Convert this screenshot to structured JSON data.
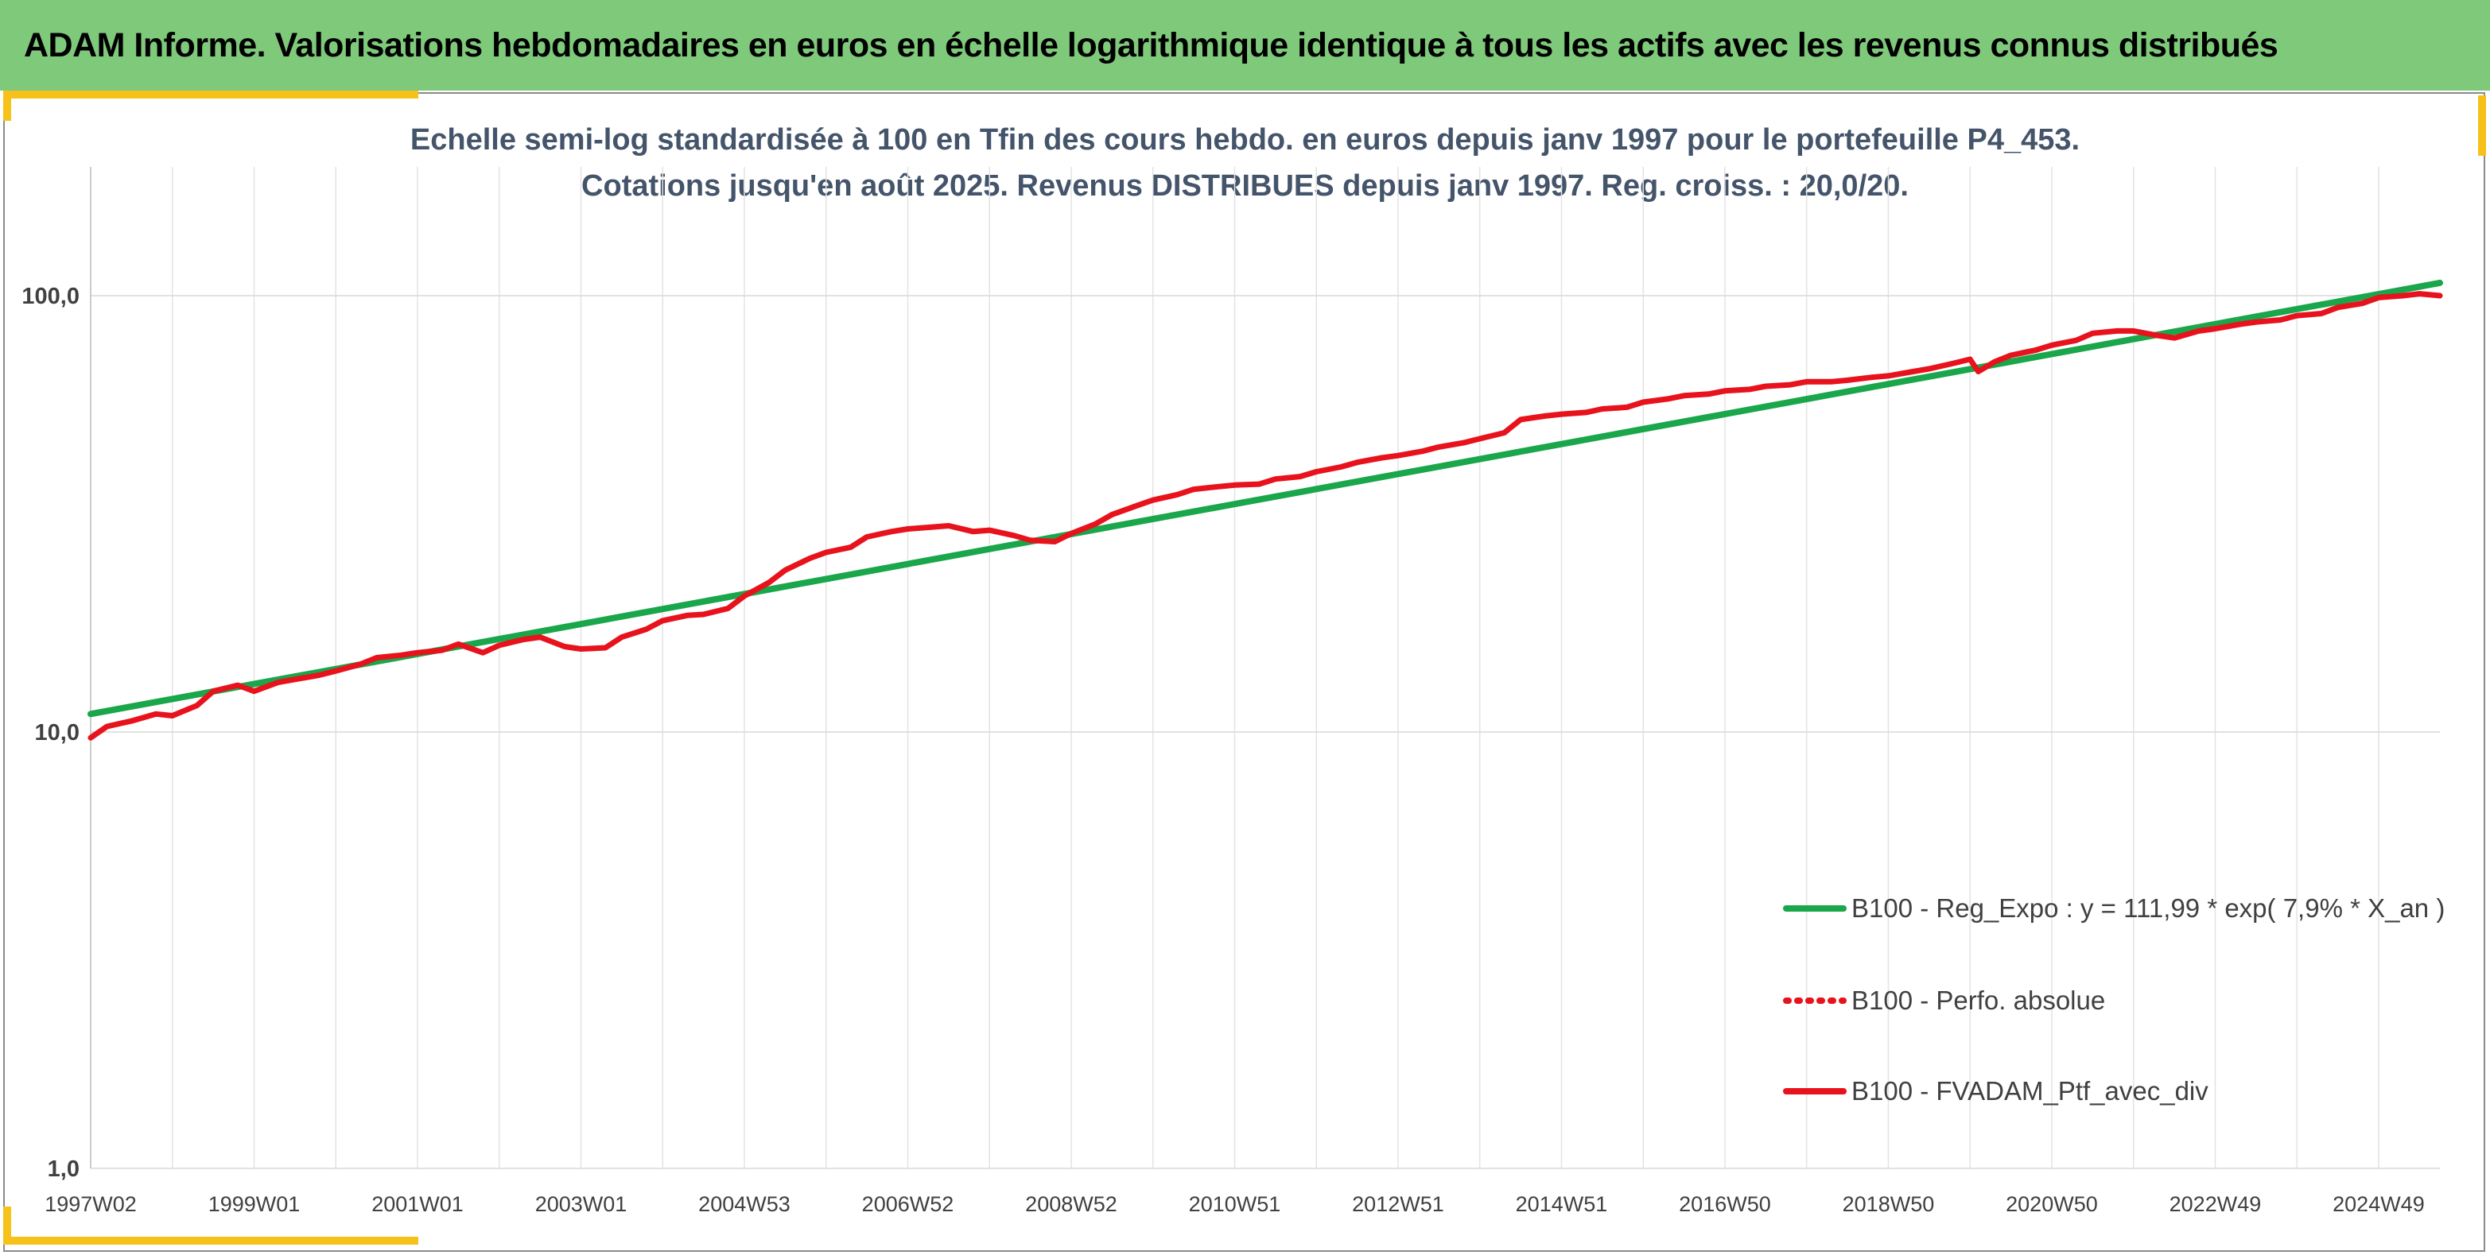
{
  "header": {
    "title": "ADAM Informe. Valorisations hebdomadaires en euros en échelle logarithmique identique à tous les actifs avec les revenus connus distribués"
  },
  "colors": {
    "header_bg": "#7fc97b",
    "accent": "#f6c21a",
    "regression": "#1aa64a",
    "portfolio": "#e8121c"
  },
  "chart_data": {
    "type": "line",
    "title": "Echelle semi-log standardisée à 100 en Tfin des cours hebdo. en euros depuis janv 1997 pour le portefeuille P4_453.",
    "subtitle": "Cotations jusqu'en août 2025. Revenus DISTRIBUES depuis janv 1997. Reg. croiss. : 20,0/20.",
    "y_scale": "log",
    "ylim": [
      1,
      200
    ],
    "y_ticks": [
      {
        "value": 1,
        "label": "1,0"
      },
      {
        "value": 10,
        "label": "10,0"
      },
      {
        "value": 100,
        "label": "100,0"
      }
    ],
    "x_ticks": [
      "1997W02",
      "1999W01",
      "2001W01",
      "2003W01",
      "2004W53",
      "2006W52",
      "2008W52",
      "2010W51",
      "2012W51",
      "2014W51",
      "2016W50",
      "2018W50",
      "2020W50",
      "2022W49",
      "2024W49"
    ],
    "x_tick_years": [
      1997.0,
      1999.0,
      2001.0,
      2003.0,
      2005.0,
      2007.0,
      2009.0,
      2011.0,
      2013.0,
      2015.0,
      2017.0,
      2019.0,
      2021.0,
      2023.0,
      2025.0
    ],
    "xlim": [
      1997.0,
      2025.75
    ],
    "grid": true,
    "legend_position": "bottom-right",
    "series": [
      {
        "name": "B100 - Reg_Expo : y = 111,99 * exp( 7,9% *  X_an )",
        "style": "solid",
        "color": "#1aa64a",
        "x": [
          1997.0,
          2025.75
        ],
        "y": [
          11.0,
          107.0
        ]
      },
      {
        "name": "B100 - Perfo. absolue",
        "style": "dotted",
        "color": "#e8121c",
        "x": [],
        "y": []
      },
      {
        "name": "B100 - FVADAM_Ptf_avec_div",
        "style": "solid",
        "color": "#e8121c",
        "x": [
          1997.0,
          1997.2,
          1997.5,
          1997.8,
          1998.0,
          1998.3,
          1998.5,
          1998.8,
          1999.0,
          1999.3,
          1999.5,
          1999.8,
          2000.0,
          2000.3,
          2000.5,
          2000.8,
          2001.0,
          2001.3,
          2001.5,
          2001.8,
          2002.0,
          2002.3,
          2002.5,
          2002.8,
          2003.0,
          2003.3,
          2003.5,
          2003.8,
          2004.0,
          2004.3,
          2004.5,
          2004.8,
          2005.0,
          2005.3,
          2005.5,
          2005.8,
          2006.0,
          2006.3,
          2006.5,
          2006.8,
          2007.0,
          2007.3,
          2007.5,
          2007.8,
          2008.0,
          2008.3,
          2008.5,
          2008.8,
          2009.0,
          2009.3,
          2009.5,
          2009.8,
          2010.0,
          2010.3,
          2010.5,
          2010.8,
          2011.0,
          2011.3,
          2011.5,
          2011.8,
          2012.0,
          2012.3,
          2012.5,
          2012.8,
          2013.0,
          2013.3,
          2013.5,
          2013.8,
          2014.0,
          2014.3,
          2014.5,
          2014.8,
          2015.0,
          2015.3,
          2015.5,
          2015.8,
          2016.0,
          2016.3,
          2016.5,
          2016.8,
          2017.0,
          2017.3,
          2017.5,
          2017.8,
          2018.0,
          2018.3,
          2018.5,
          2018.8,
          2019.0,
          2019.3,
          2019.5,
          2019.8,
          2020.0,
          2020.1,
          2020.3,
          2020.5,
          2020.8,
          2021.0,
          2021.3,
          2021.5,
          2021.8,
          2022.0,
          2022.3,
          2022.5,
          2022.8,
          2023.0,
          2023.3,
          2023.5,
          2023.8,
          2024.0,
          2024.3,
          2024.5,
          2024.8,
          2025.0,
          2025.3,
          2025.5,
          2025.75
        ],
        "y": [
          9.7,
          10.3,
          10.6,
          11.0,
          10.9,
          11.5,
          12.4,
          12.8,
          12.4,
          13.0,
          13.2,
          13.5,
          13.8,
          14.3,
          14.8,
          15.0,
          15.2,
          15.4,
          15.9,
          15.2,
          15.8,
          16.3,
          16.5,
          15.7,
          15.5,
          15.6,
          16.5,
          17.2,
          18.0,
          18.5,
          18.6,
          19.2,
          20.5,
          22.0,
          23.5,
          25.0,
          25.8,
          26.5,
          28.0,
          28.8,
          29.2,
          29.5,
          29.7,
          28.8,
          29.0,
          28.2,
          27.5,
          27.3,
          28.5,
          30.0,
          31.5,
          33.0,
          34.0,
          35.0,
          36.0,
          36.5,
          36.8,
          37.0,
          38.0,
          38.5,
          39.5,
          40.5,
          41.5,
          42.5,
          43.0,
          44.0,
          45.0,
          46.0,
          47.0,
          48.5,
          52.0,
          53.0,
          53.5,
          54.0,
          55.0,
          55.5,
          57.0,
          58.0,
          59.0,
          59.5,
          60.5,
          61.0,
          62.0,
          62.5,
          63.5,
          63.5,
          64.0,
          65.0,
          65.5,
          67.0,
          68.0,
          70.0,
          71.5,
          67.0,
          70.5,
          73.0,
          75.0,
          77.0,
          79.0,
          82.0,
          83.0,
          83.0,
          81.0,
          80.0,
          83.0,
          84.0,
          86.0,
          87.0,
          88.0,
          90.0,
          91.0,
          94.0,
          96.0,
          99.0,
          100.0,
          101.0,
          100.0
        ]
      }
    ]
  }
}
